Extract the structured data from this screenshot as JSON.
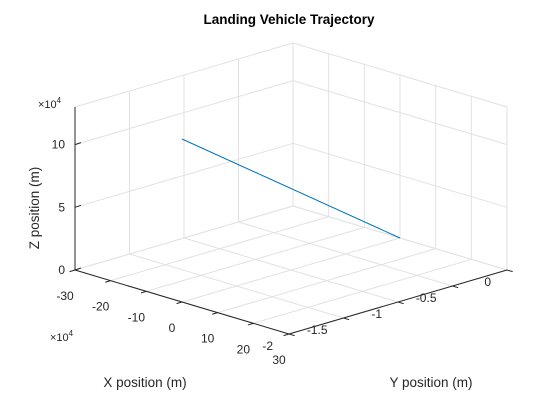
{
  "chart_data": {
    "type": "line",
    "projection": "3d",
    "title": "Landing Vehicle Trajectory",
    "xlabel": "X position (m)",
    "ylabel": "Y position (m)",
    "zlabel": "Z position (m)",
    "x_ticks": [
      "-2",
      "-1.5",
      "-1",
      "-0.5",
      "0"
    ],
    "y_ticks": [
      "-30",
      "-20",
      "-10",
      "0",
      "10",
      "20",
      "30"
    ],
    "z_ticks": [
      "0",
      "5",
      "10"
    ],
    "x_multiplier": "×10^4",
    "z_multiplier": "×10^4",
    "xlim": [
      -20000,
      0
    ],
    "ylim": [
      -30,
      30
    ],
    "zlim": [
      0,
      130000
    ],
    "grid": true,
    "series": [
      {
        "color": "#0072bd",
        "x": [
          -20000,
          0
        ],
        "y": [
          0,
          0
        ],
        "z": [
          130000,
          0
        ]
      }
    ]
  }
}
